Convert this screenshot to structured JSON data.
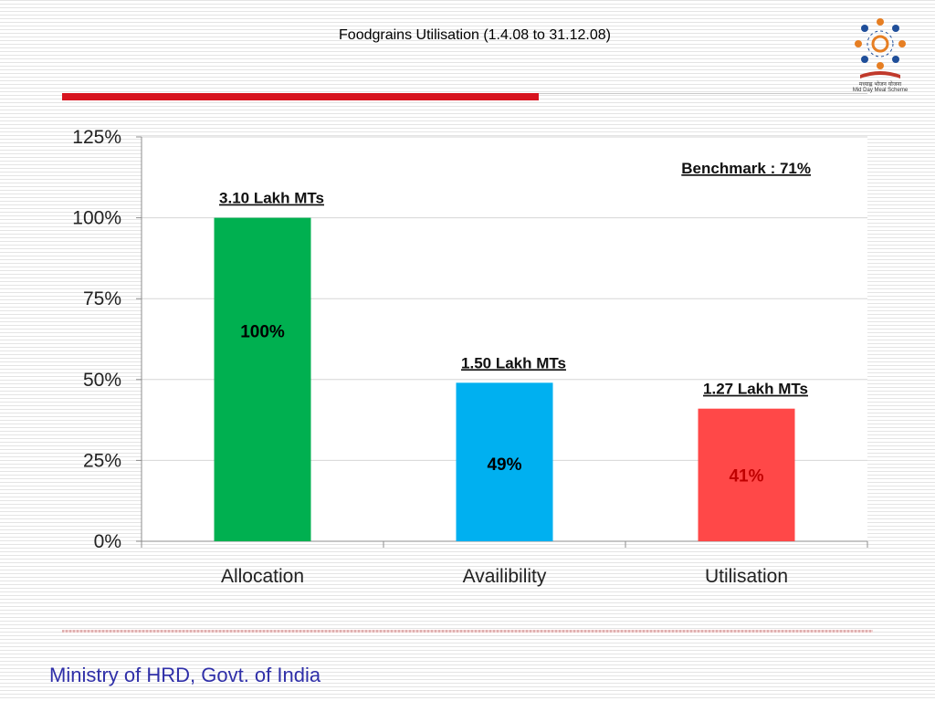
{
  "slide": {
    "title_main": "Foodgrains Utilisation",
    "title_sub": "(1.4.08 to 31.12.08)",
    "footer": "Ministry of HRD, Govt. of India",
    "logo_text_hindi": "मध्याह्न भोजन योजना",
    "logo_text_english": "Mid Day Meal Scheme",
    "colors": {
      "title_rule": "#d7141f",
      "footer_text": "#2f2fa8"
    }
  },
  "chart_data": {
    "type": "bar",
    "categories": [
      "Allocation",
      "Availibility",
      "Utilisation"
    ],
    "values": [
      100,
      49,
      41
    ],
    "data_labels": [
      "100%",
      "49%",
      "41%"
    ],
    "bar_colors": [
      "#00b050",
      "#00b0f0",
      "#ff4848"
    ],
    "label_colors": [
      "#000000",
      "#000000",
      "#c00000"
    ],
    "annotations": [
      "3.10 Lakh MTs",
      "1.50 Lakh MTs",
      "1.27 Lakh MTs"
    ],
    "benchmark_label": "Benchmark : 71%",
    "yticks": [
      "0%",
      "25%",
      "50%",
      "75%",
      "100%",
      "125%"
    ],
    "ylim": [
      0,
      125
    ],
    "grid": true
  }
}
